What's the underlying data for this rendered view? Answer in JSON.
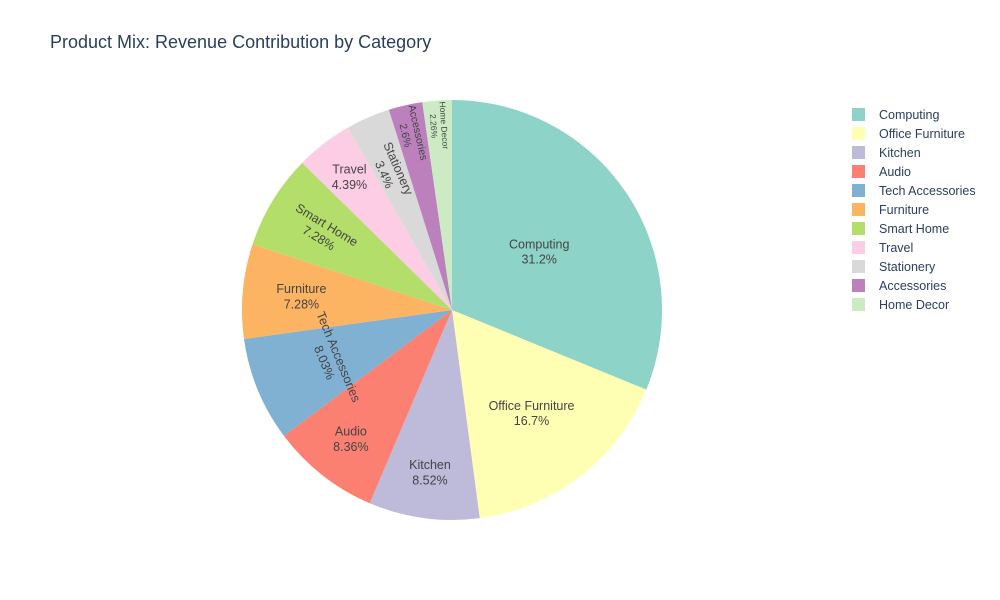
{
  "chart_data": {
    "type": "pie",
    "title": "Product Mix: Revenue Contribution by Category",
    "legend_position": "top-right",
    "slices": [
      {
        "label": "Computing",
        "value": 31.2,
        "pct_text": "31.2%",
        "color": "#8dd3c7"
      },
      {
        "label": "Office Furniture",
        "value": 16.7,
        "pct_text": "16.7%",
        "color": "#ffffb3"
      },
      {
        "label": "Kitchen",
        "value": 8.52,
        "pct_text": "8.52%",
        "color": "#bebada"
      },
      {
        "label": "Audio",
        "value": 8.36,
        "pct_text": "8.36%",
        "color": "#fb8072"
      },
      {
        "label": "Tech Accessories",
        "value": 8.03,
        "pct_text": "8.03%",
        "color": "#80b1d3"
      },
      {
        "label": "Furniture",
        "value": 7.28,
        "pct_text": "7.28%",
        "color": "#fdb462"
      },
      {
        "label": "Smart Home",
        "value": 7.28,
        "pct_text": "7.28%",
        "color": "#b3de69"
      },
      {
        "label": "Travel",
        "value": 4.39,
        "pct_text": "4.39%",
        "color": "#fccde5"
      },
      {
        "label": "Stationery",
        "value": 3.4,
        "pct_text": "3.4%",
        "color": "#d9d9d9"
      },
      {
        "label": "Accessories",
        "value": 2.6,
        "pct_text": "2.6%",
        "color": "#bc80bd"
      },
      {
        "label": "Home Decor",
        "value": 2.26,
        "pct_text": "2.26%",
        "color": "#ccebc5"
      }
    ]
  }
}
